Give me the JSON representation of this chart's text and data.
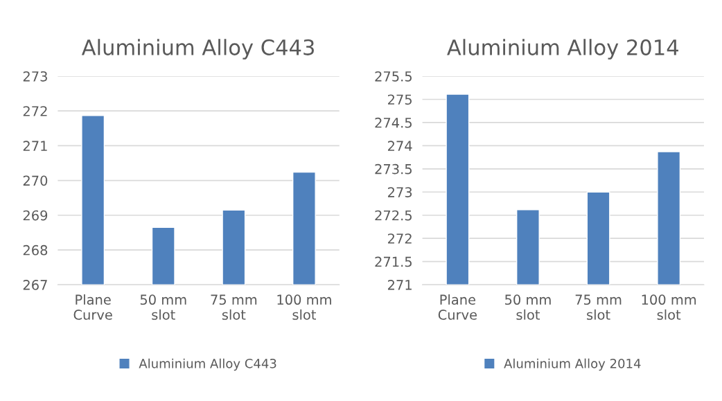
{
  "chart_data": [
    {
      "type": "bar",
      "title": "Aluminium Alloy C443",
      "categories": [
        "Plane\nCurve",
        "50 mm\nslot",
        "75 mm\nslot",
        "100 mm\nslot"
      ],
      "series": [
        {
          "name": "Aluminium Alloy C443",
          "color": "#4f81bd",
          "values": [
            271.87,
            268.65,
            269.15,
            270.24
          ]
        }
      ],
      "ylim": [
        267,
        273
      ],
      "yticks": [
        267,
        268,
        269,
        270,
        271,
        272,
        273
      ],
      "grid": "y",
      "legend": "bottom"
    },
    {
      "type": "bar",
      "title": "Aluminium Alloy 2014",
      "categories": [
        "Plane\nCurve",
        "50 mm\nslot",
        "75 mm\nslot",
        "100 mm\nslot"
      ],
      "series": [
        {
          "name": "Aluminium Alloy 2014",
          "color": "#4f81bd",
          "values": [
            275.11,
            272.62,
            273.0,
            273.87
          ]
        }
      ],
      "ylim": [
        271,
        275.5
      ],
      "yticks": [
        271,
        271.5,
        272,
        272.5,
        273,
        273.5,
        274,
        274.5,
        275,
        275.5
      ],
      "grid": "y",
      "legend": "bottom"
    }
  ]
}
